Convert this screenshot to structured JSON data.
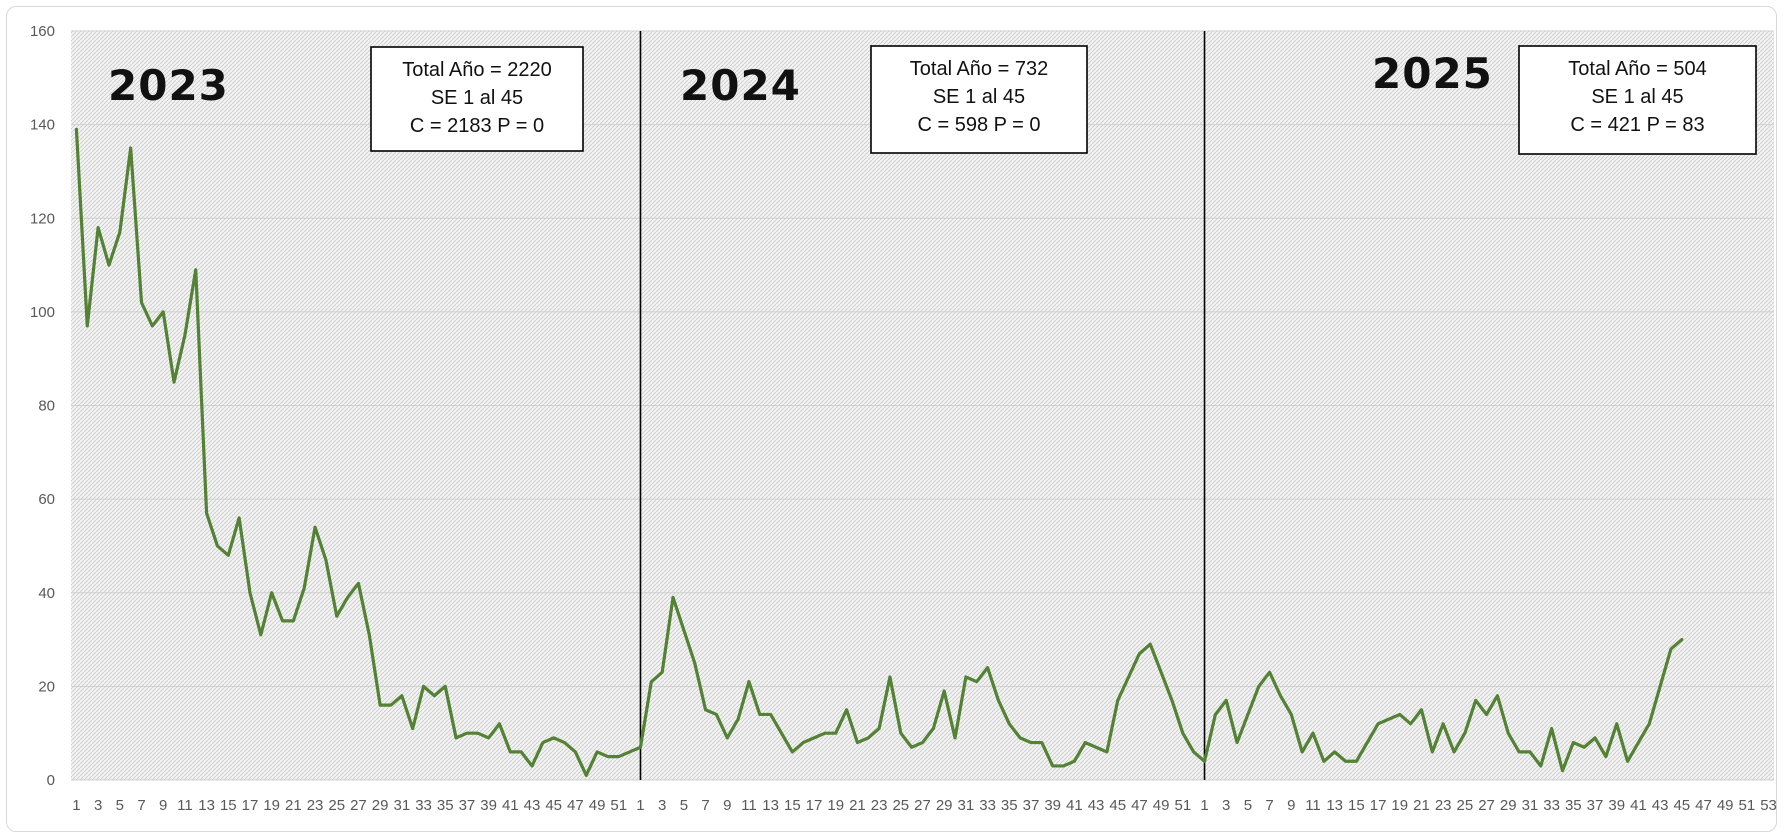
{
  "chart_data": {
    "type": "line",
    "title": "",
    "xlabel": "",
    "ylabel": "",
    "ylim": [
      0,
      160
    ],
    "yticks": [
      0,
      20,
      40,
      60,
      80,
      100,
      120,
      140,
      160
    ],
    "grid": true,
    "line_color": "#548235",
    "divider_color": "#000000",
    "segments": [
      {
        "year": "2023",
        "weeks": 52,
        "info_box": [
          "Total Año = 2220",
          "SE 1 al 45",
          "C = 2183 P = 0"
        ],
        "values": [
          139,
          97,
          118,
          110,
          117,
          135,
          102,
          97,
          100,
          85,
          95,
          109,
          57,
          50,
          48,
          56,
          40,
          31,
          40,
          34,
          34,
          41,
          54,
          47,
          35,
          39,
          42,
          31,
          16,
          16,
          18,
          11,
          20,
          18,
          20,
          9,
          10,
          10,
          9,
          12,
          6,
          6,
          3,
          8,
          9,
          8,
          6,
          1,
          6,
          5,
          5,
          6
        ]
      },
      {
        "year": "2024",
        "weeks": 52,
        "info_box": [
          "Total Año = 732",
          "SE 1 al 45",
          "C = 598 P = 0"
        ],
        "values": [
          7,
          21,
          23,
          39,
          32,
          25,
          15,
          14,
          9,
          13,
          21,
          14,
          14,
          10,
          6,
          8,
          9,
          10,
          10,
          15,
          8,
          9,
          11,
          22,
          10,
          7,
          8,
          11,
          19,
          9,
          22,
          21,
          24,
          17,
          12,
          9,
          8,
          8,
          3,
          3,
          4,
          8,
          7,
          6,
          17,
          22,
          27,
          29,
          23,
          17,
          10,
          6
        ]
      },
      {
        "year": "2025",
        "weeks": 53,
        "info_box": [
          "Total Año = 504",
          "SE 1 al 45",
          "C = 421 P = 83"
        ],
        "values": [
          4,
          14,
          17,
          8,
          14,
          20,
          23,
          18,
          14,
          6,
          10,
          4,
          6,
          4,
          4,
          8,
          12,
          13,
          14,
          12,
          15,
          6,
          12,
          6,
          10,
          17,
          14,
          18,
          10,
          6,
          6,
          3,
          11,
          2,
          8,
          7,
          9,
          5,
          12,
          4,
          8,
          12,
          20,
          28,
          30
        ]
      }
    ]
  }
}
